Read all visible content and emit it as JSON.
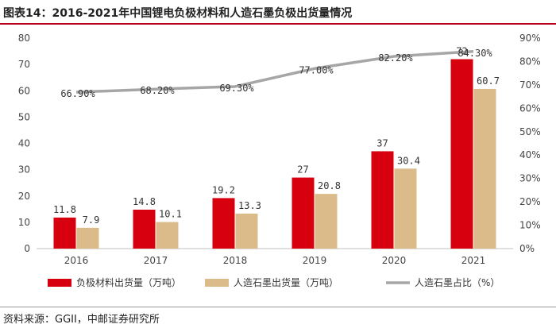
{
  "title": "图表14：2016-2021年中国锂电负极材料和人造石墨负极出货量情况",
  "source": "资料来源：GGII，中邮证券研究所",
  "colors": {
    "series1": "#d7000f",
    "series2": "#dcbb8a",
    "series3": "#a6a6a6",
    "title_rule": "#b4001e"
  },
  "chart_data": {
    "type": "bar",
    "categories": [
      "2016",
      "2017",
      "2018",
      "2019",
      "2020",
      "2021"
    ],
    "series": [
      {
        "name": "负极材料出货量（万吨）",
        "type": "bar",
        "axis": "left",
        "values": [
          11.8,
          14.8,
          19.2,
          27,
          37,
          72
        ],
        "labels": [
          "11.8",
          "14.8",
          "19.2",
          "27",
          "37",
          "72"
        ]
      },
      {
        "name": "人造石墨出货量（万吨）",
        "type": "bar",
        "axis": "left",
        "values": [
          7.9,
          10.1,
          13.3,
          20.8,
          30.4,
          60.7
        ],
        "labels": [
          "7.9",
          "10.1",
          "13.3",
          "20.8",
          "30.4",
          "60.7"
        ]
      },
      {
        "name": "人造石墨占比（%）",
        "type": "line",
        "axis": "right",
        "values": [
          66.9,
          68.2,
          69.3,
          77.0,
          82.2,
          84.3
        ],
        "labels": [
          "66.90%",
          "68.20%",
          "69.30%",
          "77.00%",
          "82.20%",
          "84.30%"
        ]
      }
    ],
    "ylim": [
      0,
      80
    ],
    "yticks": [
      "0",
      "10",
      "20",
      "30",
      "40",
      "50",
      "60",
      "70",
      "80"
    ],
    "y2lim": [
      0,
      90
    ],
    "y2ticks": [
      "0%",
      "10%",
      "20%",
      "30%",
      "40%",
      "50%",
      "60%",
      "70%",
      "80%",
      "90%"
    ],
    "grid": false,
    "legend": "bottom"
  }
}
